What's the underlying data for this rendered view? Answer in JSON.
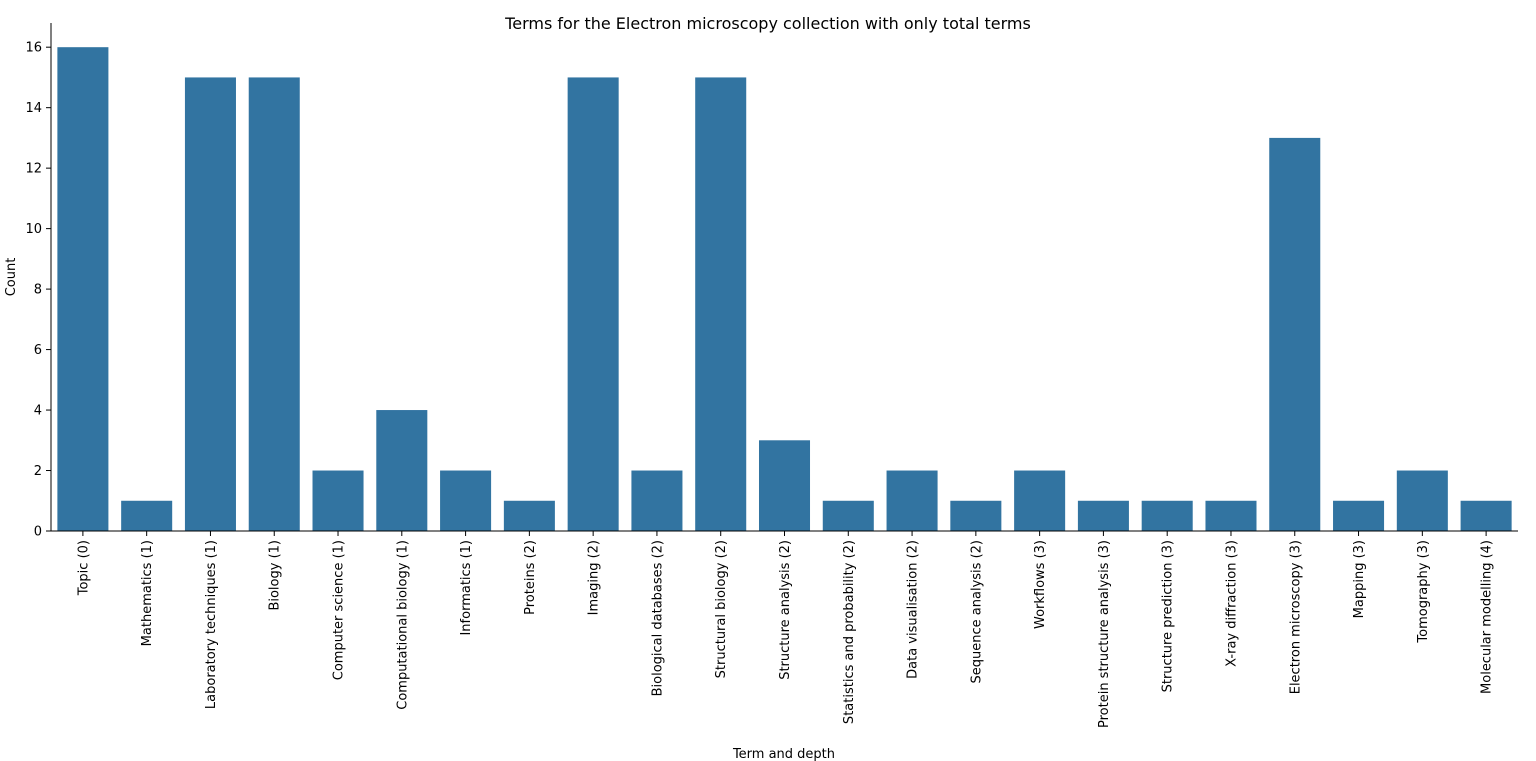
{
  "chart_data": {
    "type": "bar",
    "title": "Terms for the Electron microscopy collection with only total terms",
    "xlabel": "Term and depth",
    "ylabel": "Count",
    "ylim": [
      0,
      16.8
    ],
    "yticks": [
      0,
      2,
      4,
      6,
      8,
      10,
      12,
      14,
      16
    ],
    "grid": false,
    "bar_color": "#3274a1",
    "categories": [
      "Topic (0)",
      "Mathematics (1)",
      "Laboratory techniques (1)",
      "Biology (1)",
      "Computer science (1)",
      "Computational biology (1)",
      "Informatics (1)",
      "Proteins (2)",
      "Imaging (2)",
      "Biological databases (2)",
      "Structural biology (2)",
      "Structure analysis (2)",
      "Statistics and probability (2)",
      "Data visualisation (2)",
      "Sequence analysis (2)",
      "Workflows (3)",
      "Protein structure analysis (3)",
      "Structure prediction (3)",
      "X-ray diffraction (3)",
      "Electron microscopy (3)",
      "Mapping (3)",
      "Tomography (3)",
      "Molecular modelling (4)"
    ],
    "values": [
      16,
      1,
      15,
      15,
      2,
      4,
      2,
      1,
      15,
      2,
      15,
      3,
      1,
      2,
      1,
      2,
      1,
      1,
      1,
      13,
      1,
      2,
      1
    ]
  }
}
